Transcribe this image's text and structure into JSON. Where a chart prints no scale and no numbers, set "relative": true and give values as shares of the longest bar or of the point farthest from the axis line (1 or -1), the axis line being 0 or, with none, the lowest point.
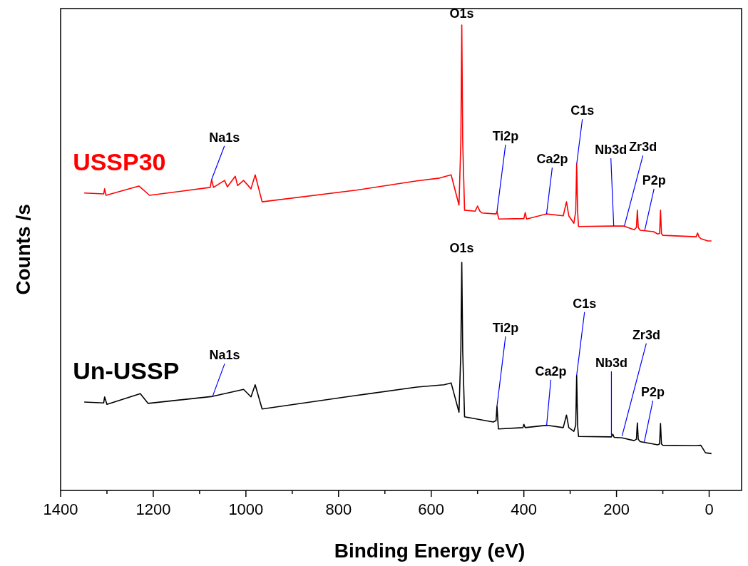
{
  "chart_data": {
    "type": "line",
    "relative": true,
    "xlabel": "Binding Energy (eV)",
    "ylabel": "Counts /s",
    "xlim": [
      1400,
      -70
    ],
    "xticks": [
      1400,
      {
        "value": 1300,
        "label": null
      },
      1200,
      {
        "value": 1100,
        "label": null
      },
      1000,
      {
        "value": 900,
        "label": null
      },
      800,
      {
        "value": 700,
        "label": null
      },
      600,
      {
        "value": 500,
        "label": null
      },
      400,
      {
        "value": 300,
        "label": null
      },
      200,
      {
        "value": 100,
        "label": null
      },
      0
    ],
    "series": [
      {
        "name": "USSP30",
        "color": "#ff0000",
        "x": [
          1349,
          1307,
          1305,
          1302,
          1231,
          1208,
          1077,
          1074,
          1070,
          1046,
          1040,
          1023,
          1018,
          1005,
          989,
          980,
          965,
          762,
          631,
          582,
          557,
          540,
          536,
          534,
          532,
          528,
          505,
          500,
          495,
          490,
          460,
          458,
          454,
          400,
          397,
          394,
          351,
          315,
          308,
          303,
          292,
          288,
          286,
          284,
          282,
          208,
          185,
          162,
          157,
          155,
          153,
          149,
          120,
          111,
          107,
          105,
          103,
          100,
          28,
          25,
          22,
          18,
          3,
          -5
        ],
        "values": [
          0.639,
          0.637,
          0.648,
          0.634,
          0.654,
          0.634,
          0.651,
          0.668,
          0.651,
          0.666,
          0.652,
          0.675,
          0.655,
          0.666,
          0.648,
          0.678,
          0.62,
          0.645,
          0.665,
          0.671,
          0.678,
          0.613,
          0.75,
          1.0,
          0.75,
          0.602,
          0.6,
          0.611,
          0.6,
          0.596,
          0.594,
          0.599,
          0.583,
          0.584,
          0.597,
          0.583,
          0.594,
          0.59,
          0.62,
          0.59,
          0.574,
          0.6,
          0.701,
          0.6,
          0.567,
          0.568,
          0.568,
          0.56,
          0.565,
          0.602,
          0.565,
          0.559,
          0.556,
          0.551,
          0.552,
          0.602,
          0.552,
          0.548,
          0.545,
          0.553,
          0.545,
          0.541,
          0.536,
          0.536
        ]
      },
      {
        "name": "Un-USSP",
        "color": "#000000",
        "x": [
          1349,
          1307,
          1305,
          1300,
          1228,
          1211,
          1072,
          1005,
          989,
          980,
          965,
          762,
          631,
          572,
          557,
          540,
          536,
          534,
          532,
          528,
          466,
          460,
          458,
          455,
          402,
          400,
          397,
          351,
          315,
          308,
          303,
          292,
          288,
          286,
          284,
          282,
          211,
          208,
          205,
          188,
          162,
          157,
          155,
          153,
          149,
          111,
          107,
          105,
          103,
          100,
          29,
          18,
          8,
          -5
        ],
        "values": [
          0.19,
          0.188,
          0.201,
          0.185,
          0.208,
          0.187,
          0.202,
          0.217,
          0.201,
          0.227,
          0.175,
          0.204,
          0.222,
          0.227,
          0.231,
          0.168,
          0.3,
          0.49,
          0.3,
          0.158,
          0.147,
          0.15,
          0.181,
          0.132,
          0.135,
          0.142,
          0.135,
          0.14,
          0.135,
          0.162,
          0.135,
          0.127,
          0.14,
          0.247,
          0.14,
          0.116,
          0.115,
          0.121,
          0.114,
          0.113,
          0.107,
          0.11,
          0.145,
          0.11,
          0.105,
          0.098,
          0.1,
          0.144,
          0.1,
          0.097,
          0.096,
          0.097,
          0.081,
          0.079
        ]
      }
    ],
    "annotations": [
      {
        "text": "O1s",
        "x": 534,
        "y": 1.0
      },
      {
        "text": "Na1s",
        "x": 1074,
        "y": 0.668
      },
      {
        "text": "Ti2p",
        "x": 458,
        "y": 0.599
      },
      {
        "text": "Ca2p",
        "x": 351,
        "y": 0.594
      },
      {
        "text": "C1s",
        "x": 286,
        "y": 0.701
      },
      {
        "text": "Nb3d",
        "x": 206,
        "y": 0.568
      },
      {
        "text": "Zr3d",
        "x": 183,
        "y": 0.568
      },
      {
        "text": "P2p",
        "x": 139,
        "y": 0.559
      },
      {
        "text": "O1s",
        "x": 534,
        "y": 0.49
      },
      {
        "text": "Na1s",
        "x": 1072,
        "y": 0.202
      },
      {
        "text": "Ti2p",
        "x": 458,
        "y": 0.181
      },
      {
        "text": "Ca2p",
        "x": 351,
        "y": 0.138
      },
      {
        "text": "C1s",
        "x": 286,
        "y": 0.247
      },
      {
        "text": "Nb3d",
        "x": 211,
        "y": 0.118
      },
      {
        "text": "Zr3d",
        "x": 188,
        "y": 0.117
      },
      {
        "text": "P2p",
        "x": 140,
        "y": 0.104
      }
    ]
  }
}
